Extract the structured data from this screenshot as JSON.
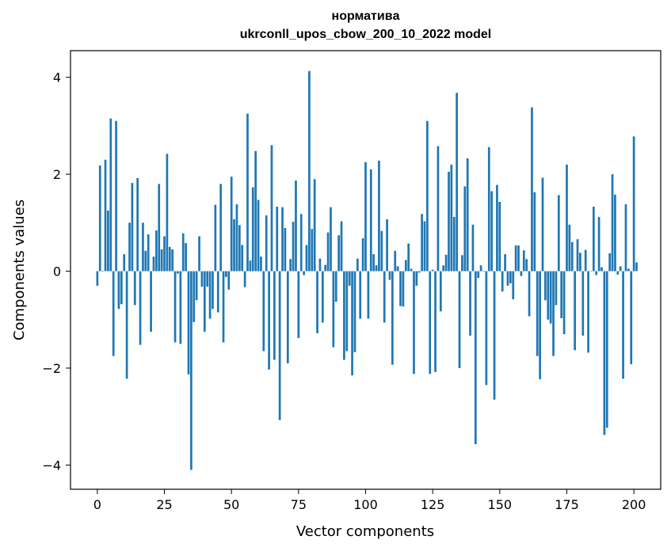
{
  "chart_data": {
    "type": "bar",
    "title": "нормативa",
    "subtitle": "ukrconll_upos_cbow_200_10_2022 model",
    "xlabel": "Vector components",
    "ylabel": "Components values",
    "xlim": [
      -10,
      210
    ],
    "ylim": [
      -4.5,
      4.55
    ],
    "xticks": [
      0,
      25,
      50,
      75,
      100,
      125,
      150,
      175,
      200
    ],
    "yticks": [
      -4,
      -2,
      0,
      2,
      4
    ],
    "xtick_labels": [
      "0",
      "25",
      "50",
      "75",
      "100",
      "125",
      "150",
      "175",
      "200"
    ],
    "ytick_labels": [
      "−4",
      "−2",
      "0",
      "2",
      "4"
    ],
    "bar_color": "#1f77b4",
    "grid": false,
    "values": [
      -0.3,
      2.18,
      0.0,
      2.3,
      1.25,
      3.15,
      -1.75,
      3.1,
      -0.78,
      -0.68,
      0.35,
      -2.22,
      1.0,
      1.82,
      -0.7,
      1.92,
      -1.52,
      1.0,
      0.42,
      0.76,
      -1.25,
      0.3,
      0.84,
      1.8,
      0.45,
      0.72,
      2.42,
      0.5,
      0.45,
      -1.47,
      -0.05,
      -1.5,
      0.78,
      0.58,
      -2.13,
      -4.1,
      -1.05,
      -0.6,
      0.72,
      -0.32,
      -1.25,
      -0.32,
      -0.98,
      -0.78,
      1.37,
      -0.85,
      1.8,
      -1.47,
      -0.12,
      -0.38,
      1.95,
      1.07,
      1.38,
      0.95,
      0.54,
      -0.33,
      3.25,
      0.22,
      1.73,
      2.48,
      1.47,
      0.3,
      -1.65,
      1.15,
      -2.03,
      2.6,
      -1.83,
      1.33,
      -3.07,
      1.32,
      0.89,
      -1.9,
      0.25,
      1.02,
      1.87,
      -1.38,
      1.18,
      -0.08,
      0.54,
      4.13,
      0.87,
      1.9,
      -1.28,
      0.26,
      -1.06,
      0.13,
      0.8,
      1.32,
      -1.57,
      -0.63,
      0.74,
      1.03,
      -1.83,
      -1.65,
      -0.3,
      -2.15,
      -1.67,
      0.26,
      -0.98,
      0.68,
      2.25,
      -0.98,
      2.1,
      0.35,
      0.12,
      2.28,
      0.83,
      -1.06,
      1.07,
      -0.18,
      -1.93,
      0.42,
      0.1,
      -0.72,
      -0.73,
      0.23,
      0.57,
      0.05,
      -2.12,
      -0.3,
      -0.03,
      1.18,
      1.03,
      3.1,
      -2.12,
      0.03,
      -2.08,
      2.58,
      -0.83,
      0.12,
      0.34,
      2.05,
      2.2,
      1.12,
      3.68,
      -2.0,
      0.33,
      1.75,
      2.33,
      -1.33,
      0.96,
      -3.57,
      -0.14,
      0.12,
      0.0,
      -2.35,
      2.56,
      1.65,
      -2.65,
      1.78,
      1.43,
      -0.42,
      0.35,
      -0.3,
      -0.25,
      -0.58,
      0.53,
      0.53,
      -0.1,
      0.43,
      0.25,
      -0.93,
      3.38,
      1.63,
      -1.75,
      -2.23,
      1.93,
      -0.6,
      -1.0,
      -1.08,
      -1.75,
      -0.7,
      1.57,
      -0.97,
      -1.3,
      2.2,
      0.96,
      0.6,
      -1.63,
      0.66,
      0.38,
      -1.33,
      0.44,
      -1.68,
      0.0,
      1.33,
      -0.08,
      1.12,
      0.08,
      -3.38,
      -3.23,
      0.37,
      2.0,
      1.58,
      -0.07,
      0.1,
      -2.22,
      1.38,
      0.05,
      -1.92,
      2.78,
      0.18
    ]
  }
}
